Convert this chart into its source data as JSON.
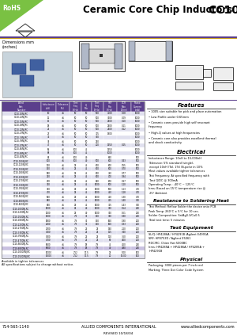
{
  "title": "Ceramic Core Chip Inductors",
  "part_series": "CC10",
  "rohs_text": "RoHS",
  "bg_color": "#ffffff",
  "header_line_color": "#5b3f8c",
  "header_line_color2": "#c8a020",
  "rohs_bg": "#7ac143",
  "table_header_bg": "#5b3f8c",
  "table_header_color": "#ffffff",
  "table_row_odd": "#e0e0ee",
  "table_row_even": "#ffffff",
  "table_highlight_bg": "#c8c0e0",
  "col_headers": [
    "Allied\nPart\nNumber",
    "Inductance\n(nH)",
    "Tolerance\n(%)",
    "Test\nFreq\n(MHz)",
    "Q\nMin",
    "Test\nFreq\n(MHz)",
    "SRF\nMin\n(MHz)",
    "DCR\nMax\n(Ohm)",
    "Rated\nCurrent\n(mA)"
  ],
  "table_data": [
    [
      "CC10-10NJ-RC",
      "10",
      "±5",
      "50",
      "50",
      "500",
      "4100",
      "0.08",
      "1000"
    ],
    [
      "CC10-12NJ-RC",
      "12",
      "±5",
      "50",
      "50",
      "500",
      "3500",
      "0.09",
      "1000"
    ],
    [
      "CC10-15NJ-RC",
      "15",
      "±5",
      "50",
      "50",
      "500",
      "2500",
      "0.10",
      "1000"
    ],
    [
      "CC10-18NJ-RC",
      "18",
      "±5",
      "50",
      "50",
      "500",
      "2500",
      "0.11",
      "1000"
    ],
    [
      "CC10-22NJ-RC",
      "22",
      "±5",
      "50",
      "50",
      "500",
      "2400",
      "0.12",
      "1000"
    ],
    [
      "CC10-27NJ-RC",
      "27",
      "±5",
      "50",
      "50",
      "375",
      "1900",
      "",
      "1000"
    ],
    [
      "CC10-33NJ-RC",
      "33",
      "±5",
      "50",
      "50",
      "300",
      "",
      "",
      "1000"
    ],
    [
      "CC10-39NJ-RC",
      "39",
      "±5",
      "50",
      "50",
      "250",
      "",
      "",
      "1000"
    ],
    [
      "CC10-47NJ-RC",
      "47",
      "±5",
      "50",
      "50",
      "200",
      "1350",
      "0.15",
      "1000"
    ],
    [
      "CC10-56NJ-RC",
      "56",
      "±5",
      "100",
      "45",
      "",
      "1350",
      "",
      "1000"
    ],
    [
      "CC10-68NJ-RC",
      "68",
      "±5",
      "100",
      "45",
      "",
      "1000",
      "",
      "1000"
    ],
    [
      "CC10-82NJ-RC",
      "82",
      "±5",
      "100",
      "40",
      "",
      "900",
      "",
      "500"
    ],
    [
      "CC10-100NJ-RC",
      "100",
      "±5",
      "100",
      "40",
      "500",
      "800",
      "0.43",
      "500"
    ],
    [
      "CC10-120NJ-RC",
      "120",
      "±5",
      "25",
      "45",
      "600",
      "800",
      "0.55",
      "500"
    ],
    [
      "CC10-150NJ-RC",
      "150",
      "±5",
      "25",
      "45",
      "600",
      "800",
      "0.70",
      "500"
    ],
    [
      "CC10-180NJ-RC",
      "180",
      "±5",
      "25",
      "45",
      "800",
      "750",
      "0.77",
      "500"
    ],
    [
      "CC10-220NJ-RC",
      "220",
      "±5",
      "25",
      "45",
      "800",
      "700",
      "0.84",
      "500"
    ],
    [
      "CC10-270NJ-RC",
      "270",
      "±5",
      "25",
      "45",
      "900",
      "600",
      "0.97",
      "500"
    ],
    [
      "CC10-330NJ-RC",
      "330",
      "±5",
      "25",
      "45",
      "1000",
      "500",
      "1.10",
      "500"
    ],
    [
      "CC10-390NJ-RC",
      "390",
      "±5",
      "25",
      "45",
      "1000",
      "500",
      "1.13",
      "470"
    ],
    [
      "CC10-470NJ-RC",
      "470",
      "±5",
      "25",
      "45",
      "1000",
      "450",
      "1.18",
      "470"
    ],
    [
      "CC10-560NJ-RC",
      "560",
      "±5",
      "25",
      "45",
      "1000",
      "450",
      "1.30",
      "470"
    ],
    [
      "CC10-680NJ-RC",
      "680",
      "±5",
      "25",
      "45",
      "1000",
      "425",
      "1.40",
      "300"
    ],
    [
      "CC10-820NJ-RC",
      "820",
      "±5",
      "25",
      "45",
      "1000",
      "375",
      "1.43",
      "300"
    ],
    [
      "CC10-1000NJ-RC",
      "1000",
      "±5",
      "25",
      "40",
      "1000",
      "360",
      "1.54",
      "240"
    ],
    [
      "CC10-1200NJ-RC",
      "1200",
      "±5",
      "25",
      "40",
      "1000",
      "350",
      "1.61",
      "220"
    ],
    [
      "CC10-1500NJ-RC",
      "1500",
      "±5",
      "7.9",
      "35",
      "150",
      "300",
      "1.80",
      "210"
    ],
    [
      "CC10-1800NJ-RC",
      "1800",
      "±5",
      "7.9",
      "35",
      "150",
      "160",
      "1.80",
      "200"
    ],
    [
      "CC10-2200NJ-RC",
      "2200",
      "±5",
      "7.9",
      "35",
      "150",
      "160",
      "1.93",
      "200"
    ],
    [
      "CC10-2700NJ-RC",
      "2700",
      "±5",
      "7.9",
      "22",
      "25",
      "140",
      "2.20",
      "200"
    ],
    [
      "CC10-3300NJ-RC",
      "3300",
      "±5",
      "7.9",
      "22",
      "25",
      "115",
      "3.40",
      "200"
    ],
    [
      "CC10-3900NJ-RC",
      "3900",
      "±5",
      "7.9",
      "22",
      "25",
      "110",
      "3.60",
      "200"
    ],
    [
      "CC10-4700NJ-RC",
      "4700",
      "±5",
      "7.9",
      "22",
      "25",
      "90",
      "4.00",
      "200"
    ],
    [
      "CC10-5600NJ-RC",
      "5600",
      "±5",
      "7.9",
      "18",
      "7.9",
      "45",
      "4.60",
      "240"
    ],
    [
      "CC10-6800NJ-RC",
      "6800",
      "±5",
      "7.9",
      "18",
      "7.9",
      "40",
      "4.80",
      "240"
    ],
    [
      "CC10-10000NJ-RC",
      "10000",
      "±5",
      "2.52",
      "17.5",
      "7.9",
      "25",
      "5.00",
      "100"
    ],
    [
      "CC10-15000NJ-RC",
      "15000",
      "±5",
      "2.52",
      "17.5",
      "7.9",
      "20",
      "14.00",
      "100"
    ]
  ],
  "features": [
    "1005 size suitable for pick and place automation",
    "Low Profile under 0.65mm",
    "Ceramic cores provide high self resonant\nfrequency",
    "High-Q values at high frequencies",
    "Ceramic core also provides excellent thermal\nand shock conductivity"
  ],
  "footer_left": "714-565-1140",
  "footer_center": "ALLIED COMPONENTS INTERNATIONAL",
  "footer_right": "www.alliedcomponents.com",
  "footer_revised": "REVISED 10/18/04",
  "dimensions_label": "Dimensions mm\n(inches)"
}
